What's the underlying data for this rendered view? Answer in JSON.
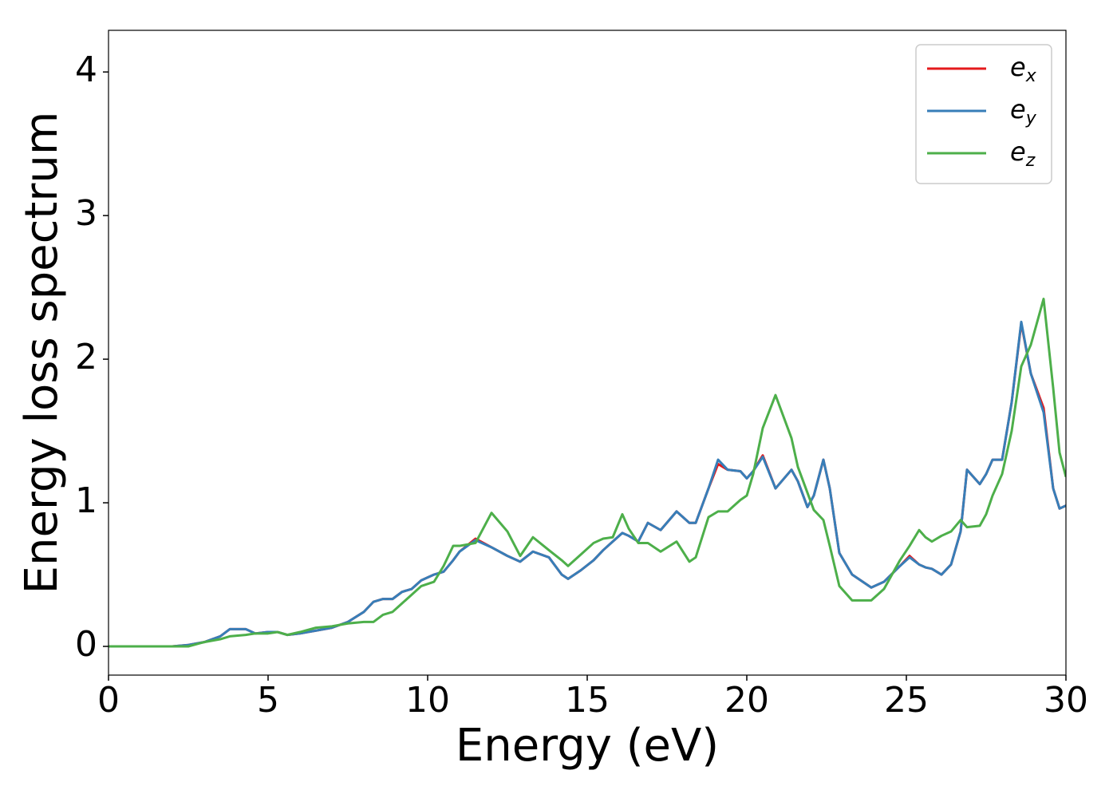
{
  "chart_data": {
    "type": "line",
    "xlabel": "Energy (eV)",
    "ylabel": "Energy loss spectrum",
    "x": [
      0,
      0.5,
      1,
      1.5,
      2,
      2.5,
      3,
      3.5,
      3.8,
      4.3,
      4.6,
      5,
      5.3,
      5.6,
      6,
      6.5,
      7,
      7.5,
      8,
      8.3,
      8.6,
      8.9,
      9.2,
      9.5,
      9.8,
      10.2,
      10.5,
      10.8,
      11,
      11.5,
      12,
      12.5,
      12.9,
      13.3,
      13.8,
      14.2,
      14.4,
      14.8,
      15.2,
      15.5,
      15.8,
      16.1,
      16.3,
      16.6,
      16.9,
      17.3,
      17.8,
      18.2,
      18.4,
      18.8,
      19.1,
      19.4,
      19.8,
      20,
      20.2,
      20.5,
      20.9,
      21.4,
      21.6,
      21.9,
      22.1,
      22.4,
      22.6,
      22.9,
      23.3,
      23.9,
      24.3,
      24.8,
      25.1,
      25.4,
      25.6,
      25.8,
      26.1,
      26.4,
      26.7,
      26.9,
      27.3,
      27.5,
      27.7,
      28,
      28.3,
      28.6,
      28.9,
      29.3,
      29.6,
      29.8,
      30
    ],
    "series": [
      {
        "name": "ex",
        "color": "#e41a1c",
        "values": [
          0,
          0,
          0,
          0,
          0,
          0.01,
          0.03,
          0.07,
          0.12,
          0.12,
          0.09,
          0.1,
          0.1,
          0.08,
          0.09,
          0.11,
          0.13,
          0.17,
          0.24,
          0.31,
          0.33,
          0.33,
          0.38,
          0.4,
          0.46,
          0.5,
          0.52,
          0.6,
          0.66,
          0.75,
          0.69,
          0.63,
          0.59,
          0.66,
          0.62,
          0.5,
          0.47,
          0.53,
          0.6,
          0.67,
          0.73,
          0.79,
          0.77,
          0.73,
          0.86,
          0.81,
          0.94,
          0.86,
          0.86,
          1.1,
          1.27,
          1.23,
          1.22,
          1.17,
          1.22,
          1.33,
          1.1,
          1.23,
          1.15,
          0.97,
          1.05,
          1.3,
          1.1,
          0.65,
          0.5,
          0.41,
          0.45,
          0.56,
          0.63,
          0.57,
          0.55,
          0.54,
          0.5,
          0.57,
          0.8,
          1.23,
          1.13,
          1.2,
          1.3,
          1.3,
          1.7,
          2.25,
          1.9,
          1.66,
          1.1,
          0.96,
          0.98
        ]
      },
      {
        "name": "ey",
        "color": "#377eb8",
        "values": [
          0,
          0,
          0,
          0,
          0,
          0.01,
          0.03,
          0.07,
          0.12,
          0.12,
          0.09,
          0.1,
          0.1,
          0.08,
          0.09,
          0.11,
          0.13,
          0.17,
          0.24,
          0.31,
          0.33,
          0.33,
          0.38,
          0.4,
          0.46,
          0.5,
          0.52,
          0.6,
          0.66,
          0.74,
          0.69,
          0.63,
          0.59,
          0.66,
          0.62,
          0.5,
          0.47,
          0.53,
          0.6,
          0.67,
          0.73,
          0.79,
          0.77,
          0.73,
          0.86,
          0.81,
          0.94,
          0.86,
          0.86,
          1.1,
          1.3,
          1.23,
          1.22,
          1.17,
          1.22,
          1.32,
          1.1,
          1.23,
          1.15,
          0.97,
          1.05,
          1.3,
          1.1,
          0.65,
          0.5,
          0.41,
          0.45,
          0.56,
          0.62,
          0.57,
          0.55,
          0.54,
          0.5,
          0.57,
          0.8,
          1.23,
          1.13,
          1.2,
          1.3,
          1.3,
          1.7,
          2.26,
          1.9,
          1.63,
          1.1,
          0.96,
          0.98
        ]
      },
      {
        "name": "ez",
        "color": "#4daf4a",
        "values": [
          0,
          0,
          0,
          0,
          0,
          0,
          0.03,
          0.05,
          0.07,
          0.08,
          0.09,
          0.09,
          0.1,
          0.08,
          0.1,
          0.13,
          0.14,
          0.16,
          0.17,
          0.17,
          0.22,
          0.24,
          0.3,
          0.36,
          0.42,
          0.45,
          0.56,
          0.7,
          0.7,
          0.72,
          0.93,
          0.8,
          0.63,
          0.76,
          0.67,
          0.6,
          0.56,
          0.64,
          0.72,
          0.75,
          0.76,
          0.92,
          0.82,
          0.72,
          0.72,
          0.66,
          0.73,
          0.59,
          0.62,
          0.9,
          0.94,
          0.94,
          1.02,
          1.05,
          1.2,
          1.52,
          1.75,
          1.45,
          1.25,
          1.07,
          0.95,
          0.88,
          0.7,
          0.42,
          0.32,
          0.32,
          0.4,
          0.6,
          0.7,
          0.81,
          0.76,
          0.73,
          0.77,
          0.8,
          0.88,
          0.83,
          0.84,
          0.92,
          1.05,
          1.2,
          1.5,
          1.95,
          2.1,
          2.42,
          1.8,
          1.35,
          1.18
        ]
      }
    ],
    "xlim": [
      0,
      30
    ],
    "xticks": [
      0,
      5,
      10,
      15,
      20,
      25,
      30
    ],
    "ylim": [
      -0.2,
      4.29
    ],
    "yticks": [
      0,
      1,
      2,
      3,
      4
    ],
    "legend": "upper right"
  }
}
